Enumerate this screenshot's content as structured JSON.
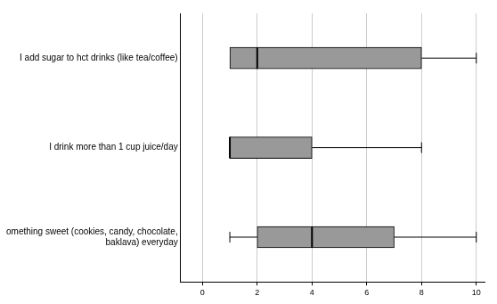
{
  "chart_data": {
    "type": "boxplot",
    "orientation": "horizontal",
    "categories": [
      "I add sugar to hct drinks (like tea/coffee)",
      "I drink more than 1 cup juice/day",
      "omething sweet (cookies, candy, chocolate, baklava) everyday"
    ],
    "values": [
      {
        "min": 1,
        "q1": 1,
        "median": 2,
        "q3": 8,
        "max": 10
      },
      {
        "min": 1,
        "q1": 1,
        "median": 1,
        "q3": 4,
        "max": 8
      },
      {
        "min": 1,
        "q1": 2,
        "median": 4,
        "q3": 7,
        "max": 10
      }
    ],
    "color": "#999999",
    "xlim": [
      -0.8,
      10.3
    ],
    "xticks": [
      0,
      2,
      4,
      6,
      8,
      10
    ],
    "grid": true
  }
}
